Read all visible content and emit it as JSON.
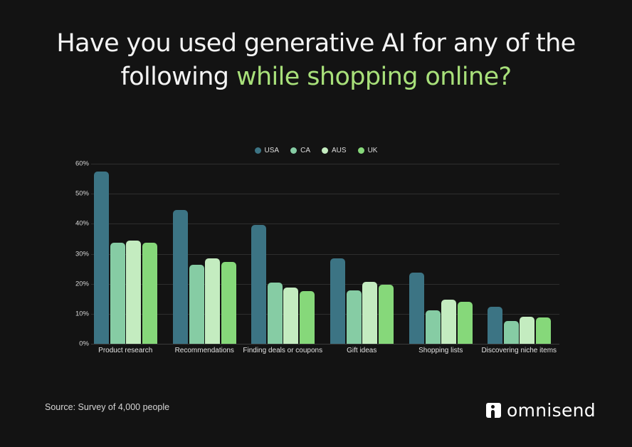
{
  "title": {
    "line1": "Have you used generative AI for any of the",
    "line2_plain": "following ",
    "line2_highlight": "while shopping online?"
  },
  "legend": [
    {
      "label": "USA",
      "color": "#3c7484"
    },
    {
      "label": "CA",
      "color": "#86cca4"
    },
    {
      "label": "AUS",
      "color": "#c4ecc0"
    },
    {
      "label": "UK",
      "color": "#86d87a"
    }
  ],
  "footer": {
    "source": "Source: Survey of 4,000 people",
    "brand": "omnisend"
  },
  "chart_data": {
    "type": "bar",
    "title": "Have you used generative AI for any of the following while shopping online?",
    "xlabel": "",
    "ylabel": "",
    "ylim": [
      0,
      60
    ],
    "yticks": [
      "0%",
      "10%",
      "20%",
      "30%",
      "40%",
      "50%",
      "60%"
    ],
    "grid": true,
    "legend_position": "top",
    "categories": [
      "Product research",
      "Recommendations",
      "Finding deals or coupons",
      "Gift ideas",
      "Shopping lists",
      "Discovering niche items"
    ],
    "series": [
      {
        "name": "USA",
        "color": "#3c7484",
        "values": [
          57.3,
          44.5,
          39.6,
          28.4,
          23.7,
          12.3
        ]
      },
      {
        "name": "CA",
        "color": "#86cca4",
        "values": [
          33.6,
          26.3,
          20.4,
          17.8,
          11.1,
          7.6
        ]
      },
      {
        "name": "AUS",
        "color": "#c4ecc0",
        "values": [
          34.4,
          28.4,
          18.7,
          20.6,
          14.7,
          9.0
        ]
      },
      {
        "name": "UK",
        "color": "#86d87a",
        "values": [
          33.6,
          27.3,
          17.5,
          19.7,
          14.0,
          8.8
        ]
      }
    ]
  }
}
